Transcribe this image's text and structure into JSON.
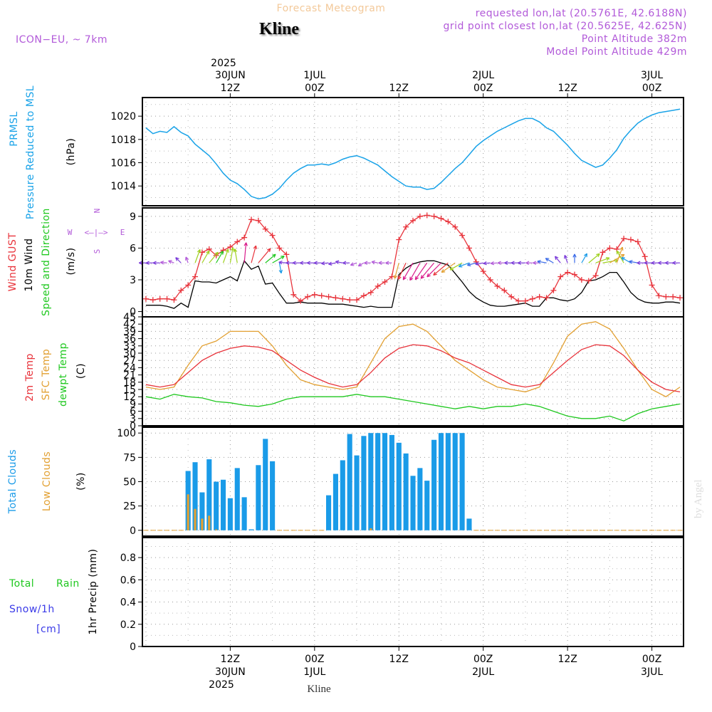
{
  "header": {
    "title": "Forecast Meteogram",
    "location": "Kline",
    "model": "ICON−EU, ~ 7km",
    "requested": "requested lon,lat (20.5761E, 42.6188N)",
    "grid_point": "grid point closest lon,lat (20.5625E, 42.625N)",
    "point_altitude": "Point Altitude 382m",
    "model_altitude": "Model Point Altitude 429m",
    "watermark": "by Angel",
    "bottom_label": "Kline"
  },
  "time_axis": {
    "top_year": "2025",
    "bottom_year": "2025",
    "labels": [
      {
        "t": 12,
        "hour": "12Z",
        "date": "30JUN"
      },
      {
        "t": 24,
        "hour": "00Z",
        "date": "1JUL"
      },
      {
        "t": 36,
        "hour": "12Z",
        "date": ""
      },
      {
        "t": 48,
        "hour": "00Z",
        "date": "2JUL"
      },
      {
        "t": 60,
        "hour": "12Z",
        "date": ""
      },
      {
        "t": 72,
        "hour": "00Z",
        "date": "3JUL"
      }
    ],
    "range": [
      -0.5,
      76.5
    ]
  },
  "panels": {
    "pressure": {
      "label1": "PRMSL",
      "label2": "Pressure Reduced to MSL",
      "unit": "(hPa)",
      "yticks": [
        "1014",
        "1016",
        "1018",
        "1020"
      ],
      "ylim": [
        1012.3,
        1021.6
      ],
      "color": "#1aa3e8"
    },
    "wind": {
      "label_gust": "Wind GUST",
      "label_wind": "10m Wind",
      "label_dir": "Speed and Direction",
      "unit": "(m/s)",
      "yticks": [
        "0",
        "3",
        "6",
        "9"
      ],
      "ylim": [
        -0.5,
        9.8
      ],
      "compass": {
        "n": "N",
        "s": "S",
        "w": "W",
        "e": "E",
        "arrows": "<—|—>"
      },
      "gust_color": "#e8333b",
      "wind_color": "#000000"
    },
    "temp": {
      "label_t2m": "2m Temp",
      "label_sfc": "SFC Temp",
      "label_dew": "dewpt Temp",
      "unit": "(C)",
      "yticks": [
        "0",
        "3",
        "6",
        "9",
        "12",
        "15",
        "18",
        "21",
        "24",
        "27",
        "30",
        "33",
        "36",
        "39",
        "42",
        "45"
      ],
      "ylim": [
        0,
        45
      ],
      "t2m_color": "#e8333b",
      "sfc_color": "#e2a032",
      "dew_color": "#1fc81f"
    },
    "clouds": {
      "label_total": "Total Clouds",
      "label_low": "Low Clouds",
      "unit": "(%)",
      "yticks": [
        "0",
        "25",
        "50",
        "75",
        "100"
      ],
      "ylim": [
        -6,
        106
      ],
      "total_color": "#1a9be8",
      "low_color": "#e2a032"
    },
    "precip": {
      "label_total": "Total",
      "label_rain": "Rain",
      "label_snow": "Snow/1h",
      "label_cm": "[cm]",
      "unit": "1hr Precip (mm)",
      "yticks": [
        "0",
        "0.2",
        "0.4",
        "0.6",
        "0.8"
      ],
      "ylim": [
        0,
        0.98
      ],
      "green": "#1fc81f",
      "blue": "#3a3ae8"
    }
  },
  "chart_data": {
    "type": "line",
    "title": "Forecast Meteogram",
    "x_unit": "hours from 30JUN 00Z",
    "pressure_hPa": {
      "x": [
        0,
        1,
        2,
        3,
        4,
        5,
        6,
        7,
        8,
        9,
        10,
        11,
        12,
        13,
        14,
        15,
        16,
        17,
        18,
        19,
        20,
        21,
        22,
        23,
        24,
        25,
        26,
        27,
        28,
        29,
        30,
        31,
        32,
        33,
        34,
        35,
        36,
        37,
        38,
        39,
        40,
        41,
        42,
        43,
        44,
        45,
        46,
        47,
        48,
        49,
        50,
        51,
        52,
        53,
        54,
        55,
        56,
        57,
        58,
        59,
        60,
        61,
        62,
        63,
        64,
        65,
        66,
        67,
        68,
        69,
        70,
        71,
        72,
        73,
        74,
        75,
        76
      ],
      "values": [
        1019.0,
        1018.5,
        1018.7,
        1018.6,
        1019.1,
        1018.6,
        1018.3,
        1017.6,
        1017.1,
        1016.6,
        1015.9,
        1015.1,
        1014.5,
        1014.2,
        1013.7,
        1013.1,
        1012.9,
        1013.0,
        1013.3,
        1013.8,
        1014.5,
        1015.1,
        1015.5,
        1015.8,
        1015.8,
        1015.9,
        1015.8,
        1016.0,
        1016.3,
        1016.5,
        1016.6,
        1016.4,
        1016.1,
        1015.8,
        1015.3,
        1014.8,
        1014.4,
        1014.0,
        1013.9,
        1013.9,
        1013.7,
        1013.8,
        1014.3,
        1014.9,
        1015.5,
        1016.0,
        1016.7,
        1017.4,
        1017.9,
        1018.3,
        1018.7,
        1019.0,
        1019.3,
        1019.6,
        1019.8,
        1019.8,
        1019.5,
        1019.0,
        1018.7,
        1018.1,
        1017.5,
        1016.8,
        1016.2,
        1015.9,
        1015.6,
        1015.8,
        1016.4,
        1017.1,
        1018.1,
        1018.8,
        1019.4,
        1019.8,
        1020.1,
        1020.3,
        1020.4,
        1020.5,
        1020.6
      ]
    },
    "wind_10m_ms": {
      "x": [
        0,
        1,
        2,
        3,
        4,
        5,
        6,
        7,
        8,
        9,
        10,
        11,
        12,
        13,
        14,
        15,
        16,
        17,
        18,
        19,
        20,
        21,
        22,
        23,
        24,
        25,
        26,
        27,
        28,
        29,
        30,
        31,
        32,
        33,
        34,
        35,
        36,
        37,
        38,
        39,
        40,
        41,
        42,
        43,
        44,
        45,
        46,
        47,
        48,
        49,
        50,
        51,
        52,
        53,
        54,
        55,
        56,
        57,
        58,
        59,
        60,
        61,
        62,
        63,
        64,
        65,
        66,
        67,
        68,
        69,
        70,
        71,
        72,
        73,
        74,
        75,
        76
      ],
      "values": [
        0.6,
        0.6,
        0.6,
        0.5,
        0.3,
        0.8,
        0.4,
        2.9,
        2.8,
        2.8,
        2.7,
        3.0,
        3.3,
        2.9,
        4.8,
        4.0,
        4.3,
        2.6,
        2.7,
        1.7,
        0.8,
        0.8,
        0.9,
        0.8,
        0.8,
        0.8,
        0.7,
        0.7,
        0.7,
        0.6,
        0.5,
        0.4,
        0.5,
        0.4,
        0.4,
        0.4,
        3.5,
        4.1,
        4.5,
        4.7,
        4.8,
        4.8,
        4.6,
        4.4,
        3.6,
        2.8,
        1.9,
        1.3,
        0.9,
        0.6,
        0.5,
        0.5,
        0.6,
        0.7,
        0.8,
        0.5,
        0.5,
        1.3,
        1.3,
        1.1,
        1.0,
        1.2,
        1.8,
        2.9,
        3.0,
        3.3,
        3.7,
        3.7,
        2.8,
        1.8,
        1.2,
        0.9,
        0.8,
        0.8,
        0.9,
        0.9,
        0.8
      ]
    },
    "wind_gust_ms": {
      "x": [
        0,
        1,
        2,
        3,
        4,
        5,
        6,
        7,
        8,
        9,
        10,
        11,
        12,
        13,
        14,
        15,
        16,
        17,
        18,
        19,
        20,
        21,
        22,
        23,
        24,
        25,
        26,
        27,
        28,
        29,
        30,
        31,
        32,
        33,
        34,
        35,
        36,
        37,
        38,
        39,
        40,
        41,
        42,
        43,
        44,
        45,
        46,
        47,
        48,
        49,
        50,
        51,
        52,
        53,
        54,
        55,
        56,
        57,
        58,
        59,
        60,
        61,
        62,
        63,
        64,
        65,
        66,
        67,
        68,
        69,
        70,
        71,
        72,
        73,
        74,
        75,
        76
      ],
      "values": [
        1.2,
        1.1,
        1.2,
        1.2,
        1.1,
        2.0,
        2.5,
        3.3,
        5.6,
        5.9,
        5.3,
        5.8,
        6.1,
        6.6,
        7.0,
        8.7,
        8.6,
        7.8,
        7.2,
        6.0,
        5.4,
        1.6,
        1.0,
        1.4,
        1.6,
        1.5,
        1.4,
        1.3,
        1.2,
        1.1,
        1.1,
        1.5,
        1.8,
        2.4,
        2.8,
        3.3,
        6.8,
        8.0,
        8.6,
        9.0,
        9.1,
        9.0,
        8.8,
        8.5,
        8.0,
        7.2,
        6.0,
        4.7,
        3.8,
        3.0,
        2.4,
        2.0,
        1.4,
        1.0,
        1.0,
        1.2,
        1.4,
        1.3,
        2.0,
        3.3,
        3.7,
        3.5,
        3.0,
        2.9,
        3.4,
        5.6,
        6.0,
        5.9,
        6.9,
        6.8,
        6.6,
        5.2,
        2.5,
        1.5,
        1.4,
        1.4,
        1.3
      ]
    },
    "temp_2m_C": {
      "x": [
        0,
        2,
        4,
        6,
        8,
        10,
        12,
        14,
        16,
        18,
        20,
        22,
        24,
        26,
        28,
        30,
        32,
        34,
        36,
        38,
        40,
        42,
        44,
        46,
        48,
        50,
        52,
        54,
        56,
        58,
        60,
        62,
        64,
        66,
        68,
        70,
        72,
        74,
        76
      ],
      "values": [
        17,
        16,
        17,
        22,
        27,
        30,
        32,
        33,
        32.5,
        31,
        27,
        23,
        20,
        17.5,
        16,
        17,
        22,
        28,
        32,
        33.5,
        33,
        31,
        28,
        26,
        23,
        20,
        17,
        16,
        17,
        22,
        27,
        31.5,
        33.5,
        33,
        29,
        23,
        18,
        15,
        14
      ]
    },
    "temp_sfc_C": {
      "x": [
        0,
        2,
        4,
        6,
        8,
        10,
        12,
        14,
        16,
        18,
        20,
        22,
        24,
        26,
        28,
        30,
        32,
        34,
        36,
        38,
        40,
        42,
        44,
        46,
        48,
        50,
        52,
        54,
        56,
        58,
        60,
        62,
        64,
        66,
        68,
        70,
        72,
        74,
        76
      ],
      "values": [
        16,
        15,
        16,
        25,
        33,
        35,
        39,
        39,
        39,
        33,
        25,
        19,
        17,
        16,
        15,
        16,
        26,
        36,
        41,
        42,
        39,
        33,
        27,
        23,
        19,
        16,
        15,
        14,
        16,
        26,
        37,
        42,
        43,
        40,
        32,
        23,
        15,
        12,
        16
      ]
    },
    "dewpoint_C": {
      "x": [
        0,
        2,
        4,
        6,
        8,
        10,
        12,
        14,
        16,
        18,
        20,
        22,
        24,
        26,
        28,
        30,
        32,
        34,
        36,
        38,
        40,
        42,
        44,
        46,
        48,
        50,
        52,
        54,
        56,
        58,
        60,
        62,
        64,
        66,
        68,
        70,
        72,
        74,
        76
      ],
      "values": [
        12,
        11,
        13,
        12,
        11.5,
        10,
        9.5,
        8.5,
        8,
        9,
        11,
        12,
        12,
        12,
        12,
        13,
        12,
        12,
        11,
        10,
        9,
        8,
        7,
        8,
        7,
        8,
        8,
        9,
        8,
        6,
        4,
        3,
        3,
        4,
        2,
        5,
        7,
        8,
        9
      ]
    },
    "total_clouds_pct": {
      "x": [
        0,
        1,
        2,
        3,
        4,
        5,
        6,
        7,
        8,
        9,
        10,
        11,
        12,
        13,
        14,
        15,
        16,
        17,
        18,
        19,
        20,
        21,
        22,
        23,
        24,
        25,
        26,
        27,
        28,
        29,
        30,
        31,
        32,
        33,
        34,
        35,
        36,
        37,
        38,
        39,
        40,
        41,
        42,
        43,
        44,
        45,
        46,
        47,
        48,
        49,
        50,
        51,
        52,
        53,
        54,
        55,
        56,
        57,
        58,
        59,
        60,
        61,
        62,
        63,
        64,
        65,
        66,
        67,
        68,
        69,
        70,
        71,
        72,
        73,
        74,
        75,
        76
      ],
      "values": [
        0,
        0,
        0,
        0,
        0,
        0,
        61,
        70,
        39,
        73,
        50,
        52,
        33,
        64,
        34,
        1,
        67,
        94,
        71,
        0,
        0,
        0,
        0,
        0,
        0,
        0,
        36,
        58,
        72,
        99,
        77,
        97,
        100,
        100,
        100,
        98,
        90,
        79,
        56,
        64,
        51,
        93,
        100,
        100,
        100,
        100,
        12,
        0,
        0,
        0,
        0,
        0,
        0,
        0,
        0,
        0,
        0,
        0,
        0,
        0,
        0,
        0,
        0,
        0,
        0,
        0,
        0,
        0,
        0,
        0,
        0,
        0,
        0,
        0,
        0,
        0,
        0
      ]
    },
    "low_clouds_pct": {
      "x": [
        6,
        7,
        8,
        9,
        10,
        32
      ],
      "values": [
        37,
        22,
        12,
        15,
        1,
        2
      ]
    },
    "precip_mm": {
      "x": [
        0,
        76
      ],
      "values": [
        0,
        0
      ]
    },
    "wind_barbs": {
      "x": [
        0,
        1,
        2,
        3,
        4,
        5,
        6,
        7,
        8,
        9,
        10,
        11,
        12,
        13,
        14,
        15,
        16,
        17,
        18,
        19,
        20,
        21,
        22,
        23,
        24,
        25,
        26,
        27,
        28,
        29,
        30,
        31,
        32,
        33,
        34,
        35,
        36,
        37,
        38,
        39,
        40,
        41,
        42,
        43,
        44,
        45,
        46,
        47,
        48,
        49,
        50,
        51,
        52,
        53,
        54,
        55,
        56,
        57,
        58,
        59,
        60,
        61,
        62,
        63,
        64,
        65,
        66,
        67,
        68,
        69,
        70,
        71,
        72,
        73,
        74,
        75,
        76
      ],
      "dir_deg": [
        90,
        90,
        90,
        95,
        110,
        135,
        160,
        200,
        210,
        220,
        210,
        200,
        190,
        170,
        185,
        195,
        220,
        230,
        240,
        350,
        95,
        90,
        90,
        90,
        90,
        90,
        85,
        80,
        100,
        90,
        70,
        60,
        90,
        100,
        90,
        90,
        15,
        25,
        30,
        30,
        35,
        40,
        45,
        50,
        55,
        60,
        70,
        75,
        80,
        85,
        85,
        90,
        90,
        90,
        90,
        90,
        90,
        100,
        120,
        140,
        160,
        180,
        210,
        230,
        250,
        260,
        240,
        200,
        150,
        120,
        100,
        90,
        90,
        90,
        90,
        90,
        90
      ]
    }
  }
}
